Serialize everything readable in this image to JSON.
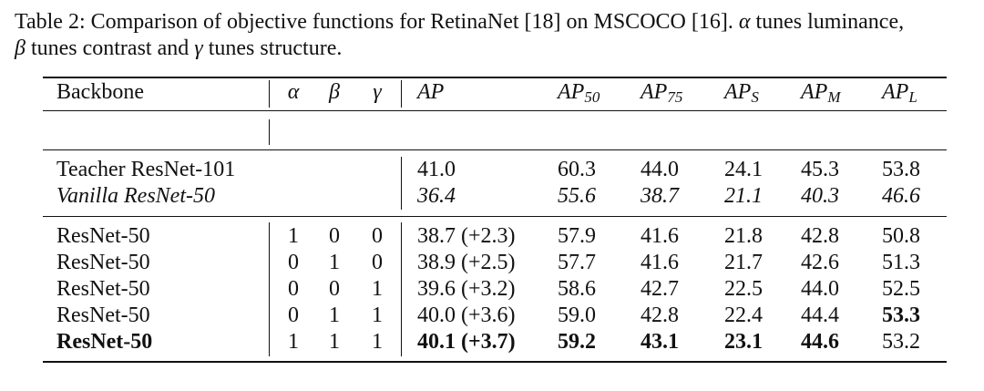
{
  "caption": {
    "prefix": "Table 2: Comparison of objective functions for RetinaNet [18] on MSCOCO [16].",
    "alpha_sym": "α",
    "alpha_text": " tunes luminance,",
    "beta_sym": "β",
    "beta_text": " tunes contrast and ",
    "gamma_sym": "γ",
    "gamma_text": " tunes structure."
  },
  "header": {
    "backbone": "Backbone",
    "alpha": "α",
    "beta": "β",
    "gamma": "γ",
    "ap": "AP",
    "ap50": {
      "base": "AP",
      "sub": "50"
    },
    "ap75": {
      "base": "AP",
      "sub": "75"
    },
    "aps": {
      "base": "AP",
      "sub": "S"
    },
    "apm": {
      "base": "AP",
      "sub": "M"
    },
    "apl": {
      "base": "AP",
      "sub": "L"
    }
  },
  "baseline_rows": [
    {
      "backbone": "Teacher ResNet-101",
      "ap": "41.0",
      "ap50": "60.3",
      "ap75": "44.0",
      "aps": "24.1",
      "apm": "45.3",
      "apl": "53.8",
      "italic": false
    },
    {
      "backbone": "Vanilla ResNet-50",
      "ap": "36.4",
      "ap50": "55.6",
      "ap75": "38.7",
      "aps": "21.1",
      "apm": "40.3",
      "apl": "46.6",
      "italic": true
    }
  ],
  "ablation_rows": [
    {
      "backbone": "ResNet-50",
      "alpha": "1",
      "beta": "0",
      "gamma": "0",
      "ap": "38.7 (+2.3)",
      "ap50": "57.9",
      "ap75": "41.6",
      "aps": "21.8",
      "apm": "42.8",
      "apl": "50.8",
      "bold": []
    },
    {
      "backbone": "ResNet-50",
      "alpha": "0",
      "beta": "1",
      "gamma": "0",
      "ap": "38.9 (+2.5)",
      "ap50": "57.7",
      "ap75": "41.6",
      "aps": "21.7",
      "apm": "42.6",
      "apl": "51.3",
      "bold": []
    },
    {
      "backbone": "ResNet-50",
      "alpha": "0",
      "beta": "0",
      "gamma": "1",
      "ap": "39.6 (+3.2)",
      "ap50": "58.6",
      "ap75": "42.7",
      "aps": "22.5",
      "apm": "44.0",
      "apl": "52.5",
      "bold": []
    },
    {
      "backbone": "ResNet-50",
      "alpha": "0",
      "beta": "1",
      "gamma": "1",
      "ap": "40.0 (+3.6)",
      "ap50": "59.0",
      "ap75": "42.8",
      "aps": "22.4",
      "apm": "44.4",
      "apl": "53.3",
      "bold": [
        "apl"
      ]
    },
    {
      "backbone": "ResNet-50",
      "alpha": "1",
      "beta": "1",
      "gamma": "1",
      "ap": "40.1 (+3.7)",
      "ap50": "59.2",
      "ap75": "43.1",
      "aps": "23.1",
      "apm": "44.6",
      "apl": "53.2",
      "bold": [
        "backbone",
        "ap",
        "ap50",
        "ap75",
        "aps",
        "apm"
      ]
    }
  ]
}
